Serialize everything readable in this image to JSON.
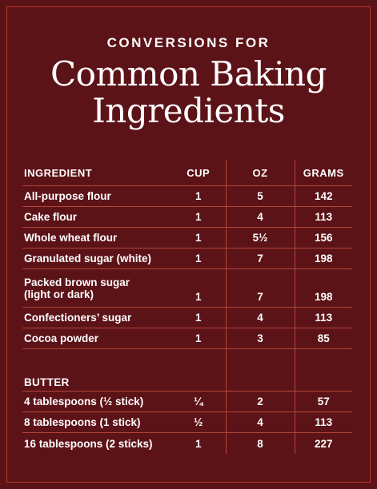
{
  "header": {
    "subtitle": "CONVERSIONS FOR",
    "title_line1": "Common Baking",
    "title_line2": "Ingredients"
  },
  "table": {
    "headers": [
      "INGREDIENT",
      "CUP",
      "OZ",
      "GRAMS"
    ],
    "rows": [
      [
        "All-purpose flour",
        "1",
        "5",
        "142"
      ],
      [
        "Cake flour",
        "1",
        "4",
        "113"
      ],
      [
        "Whole wheat flour",
        "1",
        "5½",
        "156"
      ],
      [
        "Granulated sugar (white)",
        "1",
        "7",
        "198"
      ],
      [
        "Packed brown sugar",
        "1",
        "7",
        "198"
      ],
      [
        "Confectioners’ sugar",
        "1",
        "4",
        "113"
      ],
      [
        "Cocoa powder",
        "1",
        "3",
        "85"
      ]
    ],
    "brown_sugar_line2": "(light or dark)",
    "section_label": "BUTTER",
    "butter_rows": [
      [
        "4 tablespoons (½ stick)",
        "¼",
        "2",
        "57"
      ],
      [
        "8 tablespoons (1 stick)",
        "½",
        "4",
        "113"
      ],
      [
        "16 tablespoons (2 sticks)",
        "1",
        "8",
        "227"
      ]
    ]
  },
  "colors": {
    "background": "#5c1318",
    "frame": "#b83a2c",
    "divider": "#b1453a",
    "text": "#ffffff"
  }
}
